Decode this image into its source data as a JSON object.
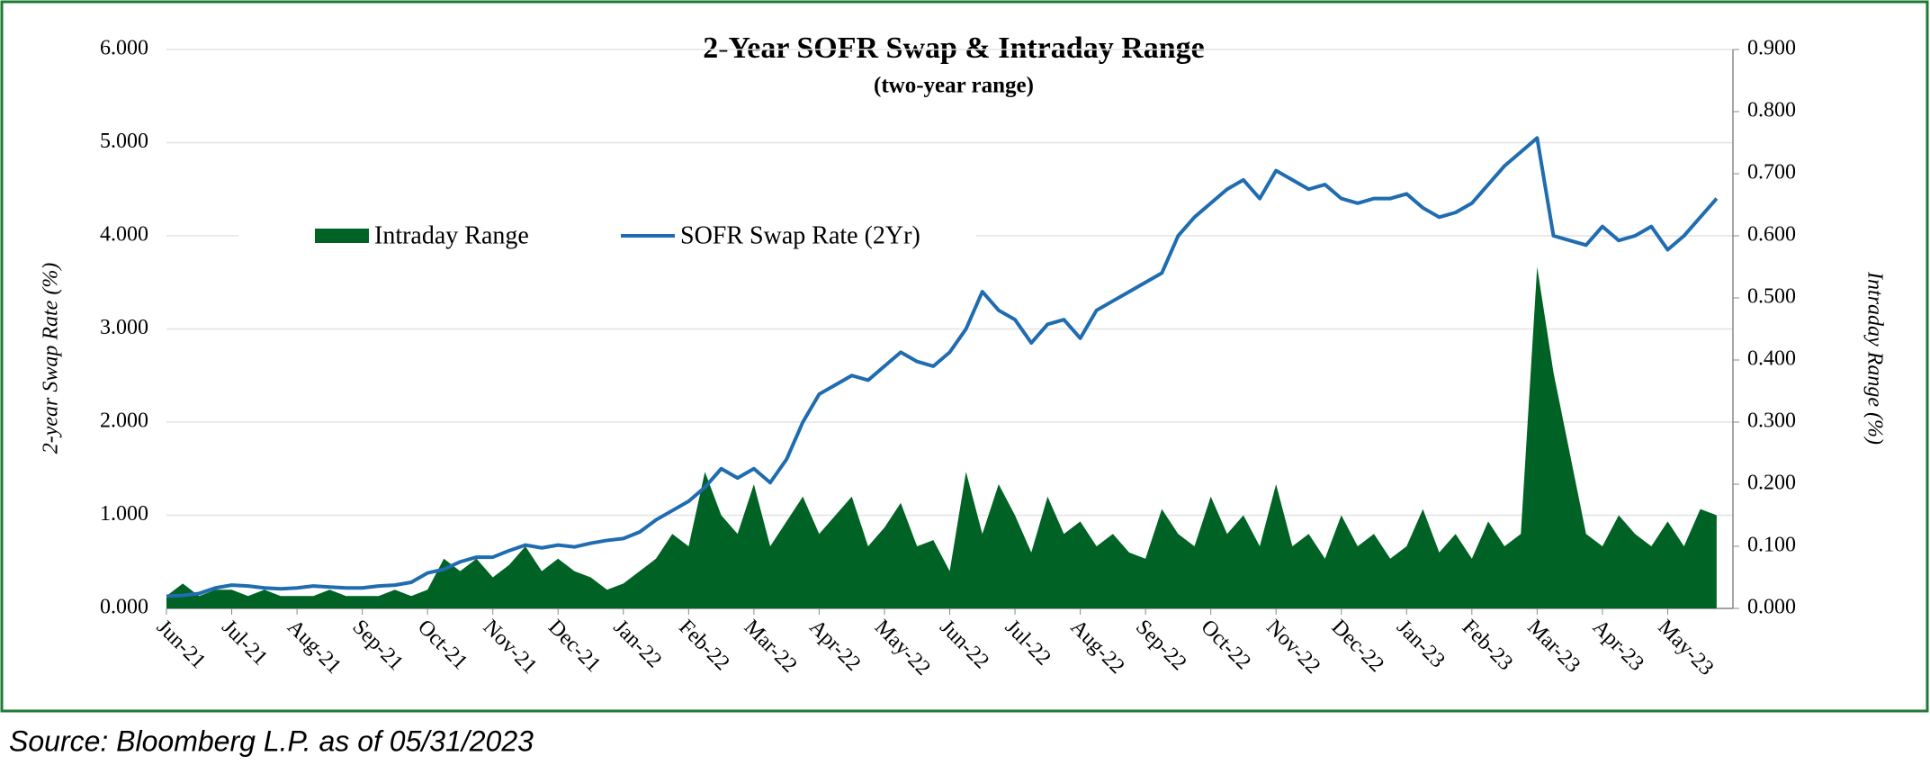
{
  "chart_data": {
    "type": "line-area",
    "title": "2-Year SOFR Swap & Intraday  Range",
    "subtitle": "(two-year   range)",
    "y_label": "2-year Swap Rate (%)",
    "y2_label": "Intraday Range (%)",
    "source": "Source: Bloomberg L.P. as of 05/31/2023",
    "xlim": [
      0,
      24
    ],
    "xticks": [
      {
        "value": 0,
        "label": "Jun-21"
      },
      {
        "value": 1,
        "label": "Jul-21"
      },
      {
        "value": 2,
        "label": "Aug-21"
      },
      {
        "value": 3,
        "label": "Sep-21"
      },
      {
        "value": 4,
        "label": "Oct-21"
      },
      {
        "value": 5,
        "label": "Nov-21"
      },
      {
        "value": 6,
        "label": "Dec-21"
      },
      {
        "value": 7,
        "label": "Jan-22"
      },
      {
        "value": 8,
        "label": "Feb-22"
      },
      {
        "value": 9,
        "label": "Mar-22"
      },
      {
        "value": 10,
        "label": "Apr-22"
      },
      {
        "value": 11,
        "label": "May-22"
      },
      {
        "value": 12,
        "label": "Jun-22"
      },
      {
        "value": 13,
        "label": "Jul-22"
      },
      {
        "value": 14,
        "label": "Aug-22"
      },
      {
        "value": 15,
        "label": "Sep-22"
      },
      {
        "value": 16,
        "label": "Oct-22"
      },
      {
        "value": 17,
        "label": "Nov-22"
      },
      {
        "value": 18,
        "label": "Dec-22"
      },
      {
        "value": 19,
        "label": "Jan-23"
      },
      {
        "value": 20,
        "label": "Feb-23"
      },
      {
        "value": 21,
        "label": "Mar-23"
      },
      {
        "value": 22,
        "label": "Apr-23"
      },
      {
        "value": 23,
        "label": "May-23"
      }
    ],
    "ylim": [
      0,
      6
    ],
    "yticks": [
      {
        "value": 0,
        "label": "0.000"
      },
      {
        "value": 1,
        "label": "1.000"
      },
      {
        "value": 2,
        "label": "2.000"
      },
      {
        "value": 3,
        "label": "3.000"
      },
      {
        "value": 4,
        "label": "4.000"
      },
      {
        "value": 5,
        "label": "5.000"
      },
      {
        "value": 6,
        "label": "6.000"
      }
    ],
    "y2lim": [
      0,
      0.9
    ],
    "y2ticks": [
      {
        "value": 0,
        "label": "0.000"
      },
      {
        "value": 0.1,
        "label": "0.100"
      },
      {
        "value": 0.2,
        "label": "0.200"
      },
      {
        "value": 0.3,
        "label": "0.300"
      },
      {
        "value": 0.4,
        "label": "0.400"
      },
      {
        "value": 0.5,
        "label": "0.500"
      },
      {
        "value": 0.6,
        "label": "0.600"
      },
      {
        "value": 0.7,
        "label": "0.700"
      },
      {
        "value": 0.8,
        "label": "0.800"
      },
      {
        "value": 0.9,
        "label": "0.900"
      }
    ],
    "grid": true,
    "x": [
      0,
      0.25,
      0.5,
      0.75,
      1,
      1.25,
      1.5,
      1.75,
      2,
      2.25,
      2.5,
      2.75,
      3,
      3.25,
      3.5,
      3.75,
      4,
      4.25,
      4.5,
      4.75,
      5,
      5.25,
      5.5,
      5.75,
      6,
      6.25,
      6.5,
      6.75,
      7,
      7.25,
      7.5,
      7.75,
      8,
      8.25,
      8.5,
      8.75,
      9,
      9.25,
      9.5,
      9.75,
      10,
      10.25,
      10.5,
      10.75,
      11,
      11.25,
      11.5,
      11.75,
      12,
      12.25,
      12.5,
      12.75,
      13,
      13.25,
      13.5,
      13.75,
      14,
      14.25,
      14.5,
      14.75,
      15,
      15.25,
      15.5,
      15.75,
      16,
      16.25,
      16.5,
      16.75,
      17,
      17.25,
      17.5,
      17.75,
      18,
      18.25,
      18.5,
      18.75,
      19,
      19.25,
      19.5,
      19.75,
      20,
      20.25,
      20.5,
      20.75,
      21,
      21.25,
      21.5,
      21.75,
      22,
      22.25,
      22.5,
      22.75,
      23,
      23.25,
      23.5,
      23.75
    ],
    "series": [
      {
        "name": "Intraday Range",
        "type": "area",
        "axis": "y2",
        "color": "#006325",
        "values": [
          0.02,
          0.04,
          0.02,
          0.03,
          0.03,
          0.02,
          0.03,
          0.02,
          0.02,
          0.02,
          0.03,
          0.02,
          0.02,
          0.02,
          0.03,
          0.02,
          0.03,
          0.08,
          0.06,
          0.08,
          0.05,
          0.07,
          0.1,
          0.06,
          0.08,
          0.06,
          0.05,
          0.03,
          0.04,
          0.06,
          0.08,
          0.12,
          0.1,
          0.22,
          0.15,
          0.12,
          0.2,
          0.1,
          0.14,
          0.18,
          0.12,
          0.15,
          0.18,
          0.1,
          0.13,
          0.17,
          0.1,
          0.11,
          0.06,
          0.22,
          0.12,
          0.2,
          0.15,
          0.09,
          0.18,
          0.12,
          0.14,
          0.1,
          0.12,
          0.09,
          0.08,
          0.16,
          0.12,
          0.1,
          0.18,
          0.12,
          0.15,
          0.1,
          0.2,
          0.1,
          0.12,
          0.08,
          0.15,
          0.1,
          0.12,
          0.08,
          0.1,
          0.16,
          0.09,
          0.12,
          0.08,
          0.14,
          0.1,
          0.12,
          0.55,
          0.38,
          0.25,
          0.12,
          0.1,
          0.15,
          0.12,
          0.1,
          0.14,
          0.1,
          0.16,
          0.15
        ]
      },
      {
        "name": "SOFR Swap Rate (2Yr)",
        "type": "line",
        "axis": "y",
        "color": "#1f6cb0",
        "values": [
          0.13,
          0.14,
          0.16,
          0.22,
          0.25,
          0.24,
          0.22,
          0.21,
          0.22,
          0.24,
          0.23,
          0.22,
          0.22,
          0.24,
          0.25,
          0.28,
          0.38,
          0.42,
          0.5,
          0.55,
          0.55,
          0.62,
          0.68,
          0.65,
          0.68,
          0.66,
          0.7,
          0.73,
          0.75,
          0.82,
          0.95,
          1.05,
          1.15,
          1.3,
          1.5,
          1.4,
          1.5,
          1.35,
          1.6,
          2.0,
          2.3,
          2.4,
          2.5,
          2.45,
          2.6,
          2.75,
          2.65,
          2.6,
          2.75,
          3.0,
          3.4,
          3.2,
          3.1,
          2.85,
          3.05,
          3.1,
          2.9,
          3.2,
          3.3,
          3.4,
          3.5,
          3.6,
          4.0,
          4.2,
          4.35,
          4.5,
          4.6,
          4.4,
          4.7,
          4.6,
          4.5,
          4.55,
          4.4,
          4.35,
          4.4,
          4.4,
          4.45,
          4.3,
          4.2,
          4.25,
          4.35,
          4.55,
          4.75,
          4.9,
          5.05,
          4.0,
          3.95,
          3.9,
          4.1,
          3.95,
          4.0,
          4.1,
          3.85,
          4.0,
          4.2,
          4.4
        ]
      }
    ]
  }
}
